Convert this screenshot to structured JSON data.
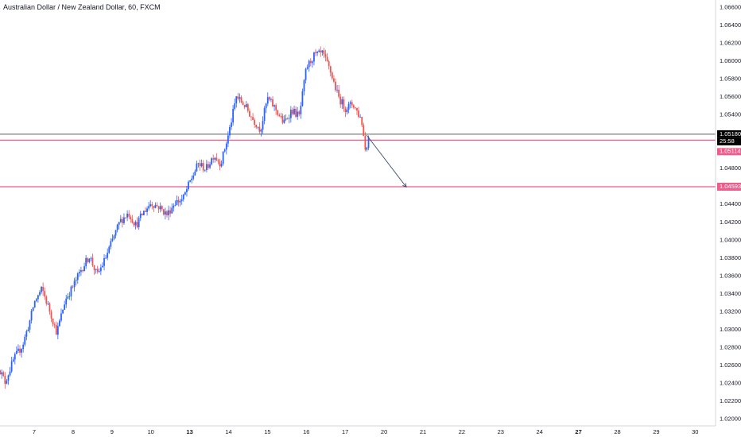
{
  "chart_data": {
    "type": "candlestick",
    "title": "Australian Dollar / New Zealand Dollar, 60, FXCM",
    "ylim": [
      1.0192,
      1.0668
    ],
    "y_ticks": [
      1.02,
      1.022,
      1.024,
      1.026,
      1.028,
      1.03,
      1.032,
      1.034,
      1.036,
      1.038,
      1.04,
      1.042,
      1.044,
      1.046,
      1.048,
      1.05,
      1.052,
      1.054,
      1.056,
      1.058,
      1.06,
      1.062,
      1.064,
      1.066
    ],
    "y_tick_labels": [
      "1.02000",
      "1.02200",
      "1.02400",
      "1.02600",
      "1.02800",
      "1.03000",
      "1.03200",
      "1.03400",
      "1.03600",
      "1.03800",
      "1.04000",
      "1.04200",
      "1.04400",
      "1.04600",
      "1.04800",
      "1.05000",
      "1.05200",
      "1.05400",
      "1.05600",
      "1.05800",
      "1.06000",
      "1.06200",
      "1.06400",
      "1.06600"
    ],
    "x_ticks": [
      {
        "label": "7",
        "day": 0,
        "bold": false
      },
      {
        "label": "8",
        "day": 1,
        "bold": false
      },
      {
        "label": "9",
        "day": 2,
        "bold": false
      },
      {
        "label": "10",
        "day": 3,
        "bold": false
      },
      {
        "label": "13",
        "day": 4,
        "bold": true
      },
      {
        "label": "14",
        "day": 5,
        "bold": false
      },
      {
        "label": "15",
        "day": 6,
        "bold": false
      },
      {
        "label": "16",
        "day": 7,
        "bold": false
      },
      {
        "label": "17",
        "day": 8,
        "bold": false
      },
      {
        "label": "20",
        "day": 9,
        "bold": false
      },
      {
        "label": "21",
        "day": 10,
        "bold": false
      },
      {
        "label": "22",
        "day": 11,
        "bold": false
      },
      {
        "label": "23",
        "day": 12,
        "bold": false
      },
      {
        "label": "24",
        "day": 13,
        "bold": false
      },
      {
        "label": "27",
        "day": 14,
        "bold": true
      },
      {
        "label": "28",
        "day": 15,
        "bold": false
      },
      {
        "label": "29",
        "day": 16,
        "bold": false
      },
      {
        "label": "30",
        "day": 17,
        "bold": false
      }
    ],
    "price_path": [
      [
        -0.92,
        1.0258
      ],
      [
        -0.75,
        1.0241
      ],
      [
        -0.52,
        1.0267
      ],
      [
        -0.3,
        1.0282
      ],
      [
        -0.1,
        1.0311
      ],
      [
        0.0,
        1.033
      ],
      [
        0.2,
        1.0345
      ],
      [
        0.42,
        1.0318
      ],
      [
        0.58,
        1.0296
      ],
      [
        0.8,
        1.0333
      ],
      [
        1.0,
        1.0348
      ],
      [
        1.2,
        1.0366
      ],
      [
        1.42,
        1.0382
      ],
      [
        1.62,
        1.036
      ],
      [
        1.82,
        1.0378
      ],
      [
        2.0,
        1.0398
      ],
      [
        2.2,
        1.042
      ],
      [
        2.42,
        1.043
      ],
      [
        2.62,
        1.0416
      ],
      [
        2.8,
        1.043
      ],
      [
        3.0,
        1.0441
      ],
      [
        3.2,
        1.0437
      ],
      [
        3.42,
        1.0428
      ],
      [
        3.62,
        1.0442
      ],
      [
        3.82,
        1.0445
      ],
      [
        4.0,
        1.0464
      ],
      [
        4.22,
        1.0485
      ],
      [
        4.42,
        1.0479
      ],
      [
        4.62,
        1.0495
      ],
      [
        4.8,
        1.0485
      ],
      [
        5.0,
        1.0518
      ],
      [
        5.2,
        1.056
      ],
      [
        5.42,
        1.055
      ],
      [
        5.62,
        1.0535
      ],
      [
        5.82,
        1.0523
      ],
      [
        6.0,
        1.0558
      ],
      [
        6.2,
        1.0547
      ],
      [
        6.42,
        1.053
      ],
      [
        6.62,
        1.0545
      ],
      [
        6.82,
        1.0538
      ],
      [
        7.0,
        1.0592
      ],
      [
        7.2,
        1.0606
      ],
      [
        7.42,
        1.0608
      ],
      [
        7.62,
        1.0588
      ],
      [
        7.82,
        1.056
      ],
      [
        8.0,
        1.0547
      ],
      [
        8.2,
        1.0552
      ],
      [
        8.42,
        1.0534
      ],
      [
        8.52,
        1.05
      ],
      [
        8.62,
        1.0518
      ]
    ],
    "current_price": "1.05180",
    "countdown": "25:58",
    "lines": [
      {
        "name": "level-upper",
        "price": 1.05114,
        "label": "1.05114",
        "color": "#ef5b8b"
      },
      {
        "name": "level-target",
        "price": 1.04593,
        "label": "1.04593",
        "color": "#ef5b8b"
      },
      {
        "name": "last-price",
        "price": 1.0518,
        "label": "1.05180",
        "color": "#555555"
      }
    ],
    "arrow": {
      "from_day": 8.55,
      "from_price": 1.0517,
      "to_day": 9.57,
      "to_price": 1.0459
    },
    "colors": {
      "up": "#2962ff",
      "down": "#ef5350",
      "level": "#ef5b8b",
      "last": "#000000",
      "grid": "#e6e6e6"
    },
    "grid": false
  }
}
